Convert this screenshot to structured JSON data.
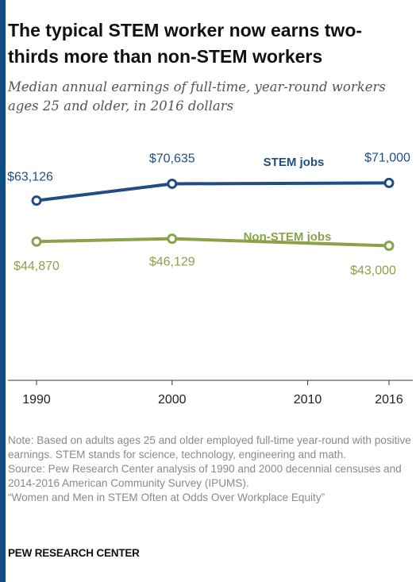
{
  "title": "The typical STEM worker now earns two-thirds more than non-STEM workers",
  "subtitle": "Median annual earnings of full-time, year-round workers ages 25 and older, in 2016 dollars",
  "note": "Note: Based on adults ages 25 and older employed full-time year-round with positive earnings. STEM stands for science, technology, engineering and math.",
  "source": "Source: Pew Research Center analysis of 1990 and 2000 decennial censuses and 2014-2016 American Community Survey (IPUMS).",
  "report": "“Women and Men in STEM Often at Odds Over Workplace Equity”",
  "brand": "PEW RESEARCH CENTER",
  "colors": {
    "stem": "#1f4e84",
    "nonstem": "#8aa34a",
    "axis": "#333333",
    "edge": "#0d4d82"
  },
  "chart_data": {
    "type": "line",
    "x": [
      1990,
      2000,
      2016
    ],
    "xticks": [
      "1990",
      "2000",
      "2010",
      "2016"
    ],
    "xtick_values": [
      1990,
      2000,
      2010,
      2016
    ],
    "xlim": [
      1990,
      2016
    ],
    "ylim": [
      0,
      80000
    ],
    "series": [
      {
        "name": "STEM jobs",
        "values": [
          63126,
          70635,
          71000
        ],
        "labels": [
          "$63,126",
          "$70,635",
          "$71,000"
        ],
        "color": "#1f4e84"
      },
      {
        "name": "Non-STEM jobs",
        "values": [
          44870,
          46129,
          43000
        ],
        "labels": [
          "$44,870",
          "$46,129",
          "$43,000"
        ],
        "color": "#8aa34a"
      }
    ]
  }
}
